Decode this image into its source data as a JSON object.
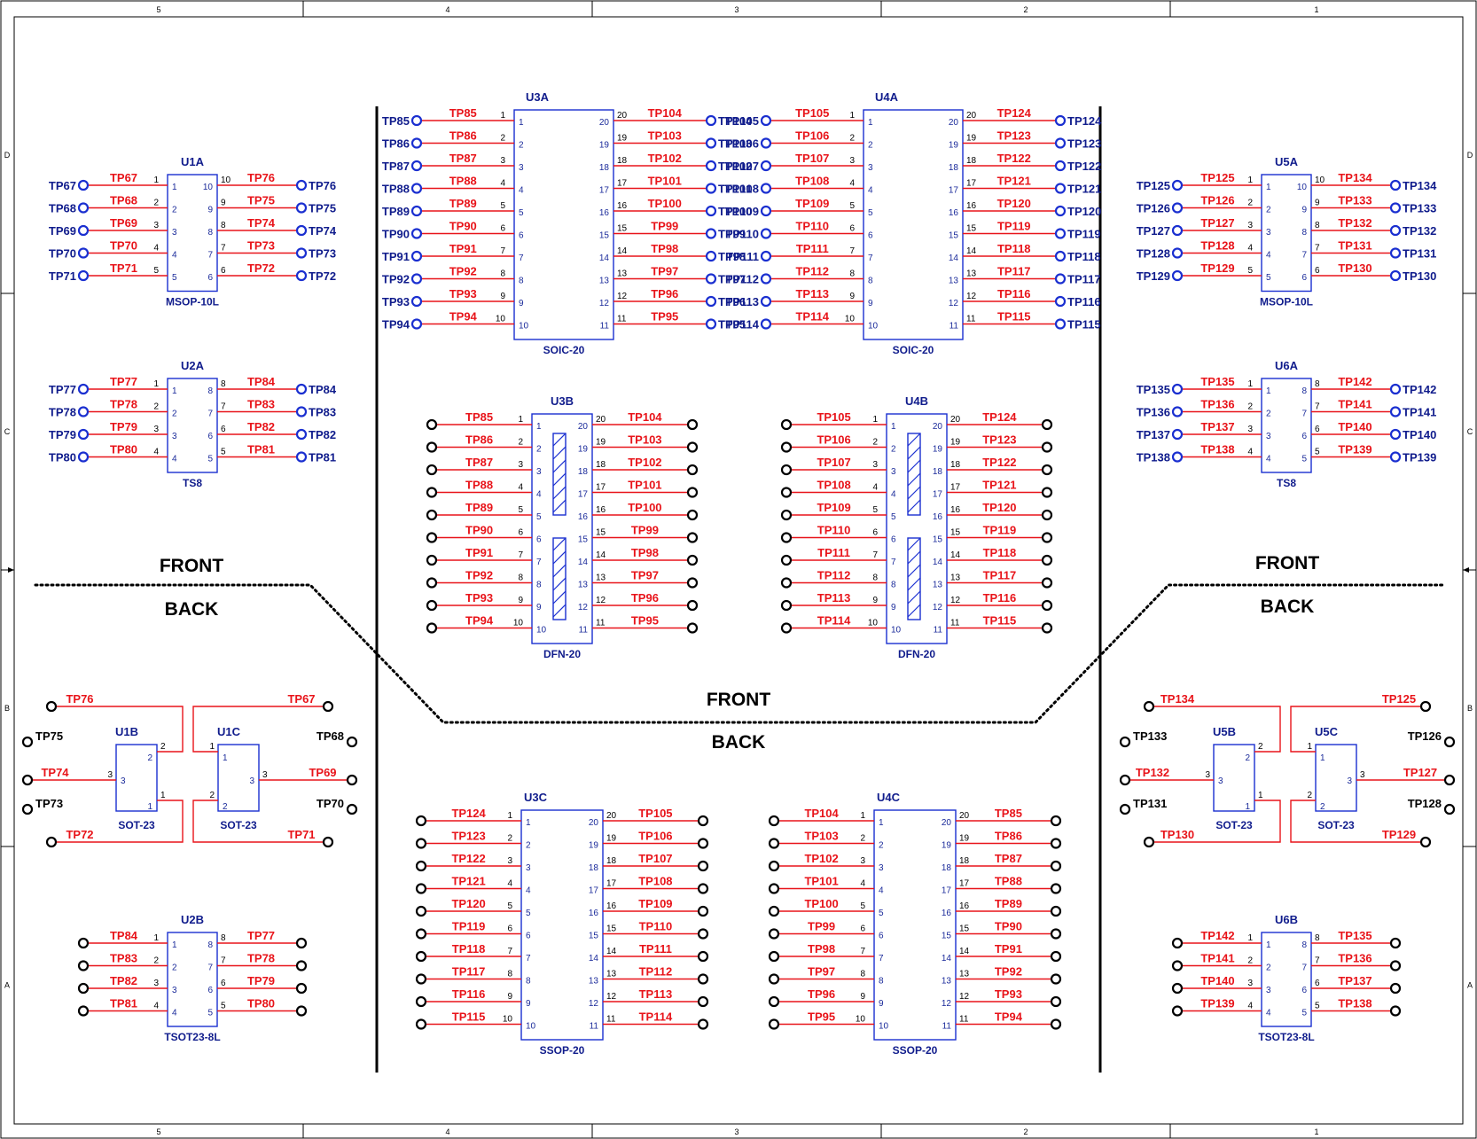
{
  "frame": {
    "columns": [
      "5",
      "4",
      "3",
      "2",
      "1"
    ],
    "rows": [
      "D",
      "C",
      "B",
      "A"
    ]
  },
  "section_labels": [
    {
      "id": "front-left",
      "text": "FRONT"
    },
    {
      "id": "back-left",
      "text": "BACK"
    },
    {
      "id": "front-center",
      "text": "FRONT"
    },
    {
      "id": "back-center",
      "text": "BACK"
    },
    {
      "id": "front-right",
      "text": "FRONT"
    },
    {
      "id": "back-right",
      "text": "BACK"
    }
  ],
  "components": [
    {
      "ref": "U1A",
      "package": "MSOP-10L",
      "pins": 10,
      "start": 67,
      "style": "tp",
      "testpoints": "blue"
    },
    {
      "ref": "U2A",
      "package": "TS8",
      "pins": 8,
      "start": 77,
      "style": "tp",
      "testpoints": "blue"
    },
    {
      "ref": "U3A",
      "package": "SOIC-20",
      "pins": 20,
      "start": 85,
      "style": "tp",
      "testpoints": "blue"
    },
    {
      "ref": "U4A",
      "package": "SOIC-20",
      "pins": 20,
      "start": 105,
      "style": "tp",
      "testpoints": "blue"
    },
    {
      "ref": "U5A",
      "package": "MSOP-10L",
      "pins": 10,
      "start": 125,
      "style": "tp",
      "testpoints": "blue"
    },
    {
      "ref": "U6A",
      "package": "TS8",
      "pins": 8,
      "start": 135,
      "style": "tp",
      "testpoints": "blue"
    },
    {
      "ref": "U3B",
      "package": "DFN-20",
      "pins": 20,
      "start": 85,
      "style": "dfn",
      "testpoints": "black"
    },
    {
      "ref": "U4B",
      "package": "DFN-20",
      "pins": 20,
      "start": 105,
      "style": "dfn",
      "testpoints": "black"
    },
    {
      "ref": "U3C",
      "package": "SSOP-20",
      "pins": 20,
      "start": 124,
      "style": "reversed",
      "testpoints": "black"
    },
    {
      "ref": "U4C",
      "package": "SSOP-20",
      "pins": 20,
      "start": 104,
      "style": "reversed",
      "testpoints": "black"
    },
    {
      "ref": "U2B",
      "package": "TSOT23-8L",
      "pins": 8,
      "start": 84,
      "style": "tsot",
      "testpoints": "black"
    },
    {
      "ref": "U6B",
      "package": "TSOT23-8L",
      "pins": 8,
      "start": 142,
      "style": "tsot",
      "testpoints": "black"
    }
  ],
  "sot_groups": [
    {
      "left_ref": "U1B",
      "right_ref": "U1C",
      "package": "SOT-23",
      "nets": {
        "top_left": "TP76",
        "top_right": "TP67",
        "mid_left": "TP74",
        "mid_right": "TP69",
        "bot_left": "TP72",
        "bot_right": "TP71"
      },
      "unused": {
        "left_top": "TP75",
        "left_bot": "TP73",
        "right_top": "TP68",
        "right_bot": "TP70"
      }
    },
    {
      "left_ref": "U5B",
      "right_ref": "U5C",
      "package": "SOT-23",
      "nets": {
        "top_left": "TP134",
        "top_right": "TP125",
        "mid_left": "TP132",
        "mid_right": "TP127",
        "bot_left": "TP130",
        "bot_right": "TP129"
      },
      "unused": {
        "left_top": "TP133",
        "left_bot": "TP131",
        "right_top": "TP126",
        "right_bot": "TP128"
      }
    }
  ],
  "sot_pin_numbers": [
    "1",
    "2",
    "3"
  ]
}
